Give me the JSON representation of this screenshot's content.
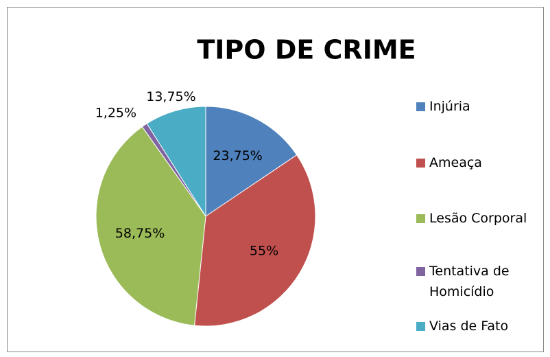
{
  "chart_data": {
    "type": "pie",
    "title": "TIPO DE CRIME",
    "categories": [
      "Injúria",
      "Ameaça",
      "Lesão Corporal",
      "Tentativa de Homicídio",
      "Vias de Fato"
    ],
    "values": [
      23.75,
      55,
      58.75,
      1.25,
      13.75
    ],
    "value_labels": [
      "23,75%",
      "55%",
      "58,75%",
      "1,25%",
      "13,75%"
    ],
    "colors": [
      "#4f81bd",
      "#c0504d",
      "#9bbb59",
      "#8064a2",
      "#4bacc6"
    ],
    "legend": "right"
  }
}
